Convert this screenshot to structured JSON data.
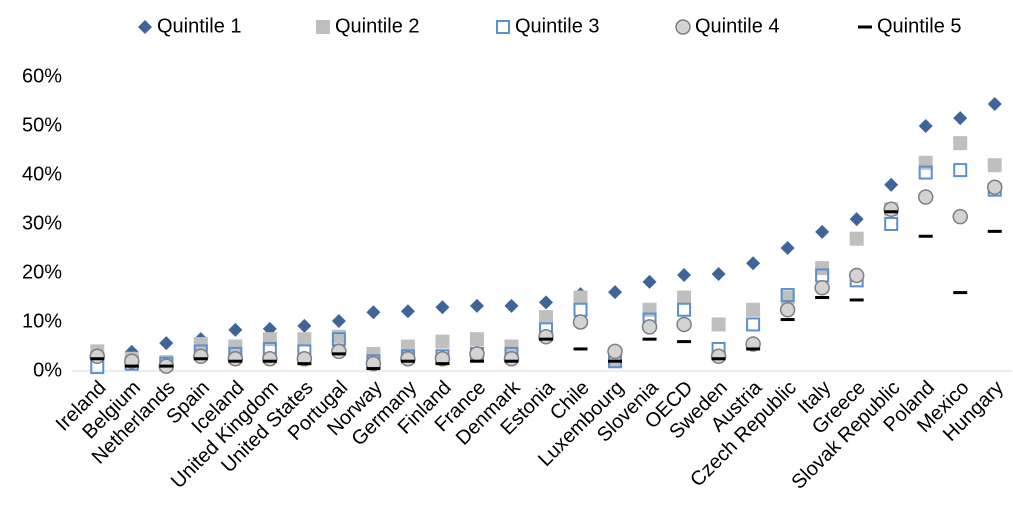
{
  "chart_data": {
    "type": "dot",
    "categories": [
      "Ireland",
      "Belgium",
      "Netherlands",
      "Spain",
      "Iceland",
      "United Kingdom",
      "United States",
      "Portugal",
      "Norway",
      "Germany",
      "Finland",
      "France",
      "Denmark",
      "Estonia",
      "Chile",
      "Luxembourg",
      "Slovenia",
      "OECD",
      "Sweden",
      "Austria",
      "Czech Republic",
      "Italy",
      "Greece",
      "Slovak Republic",
      "Poland",
      "Mexico",
      "Hungary"
    ],
    "series": [
      {
        "name": "Quintile 1",
        "color": "#3f6499",
        "marker": "diamond",
        "values": [
          3,
          3.9,
          5.7,
          6.5,
          8.4,
          8.6,
          9.2,
          10.2,
          12,
          12.2,
          13,
          13.3,
          13.3,
          14,
          15.7,
          16.1,
          18.2,
          19.6,
          19.8,
          22,
          25.1,
          28.4,
          31,
          38,
          50,
          51.6,
          54.5
        ]
      },
      {
        "name": "Quintile 2",
        "color": "#bfbfbf",
        "marker": "square",
        "values": [
          4,
          2.5,
          1.8,
          5.5,
          5,
          6.5,
          6.5,
          7,
          3.5,
          5,
          6,
          6.5,
          5,
          11,
          15,
          2,
          12.5,
          15,
          9.5,
          12.5,
          15,
          21,
          27,
          33,
          42.5,
          46.5,
          42
        ]
      },
      {
        "name": "Quintile 3",
        "color": "#5b8fd1",
        "marker": "hollow-square",
        "values": [
          0.8,
          1.5,
          1.5,
          4,
          3.5,
          4.5,
          4,
          6.5,
          2,
          3,
          3,
          3.5,
          3.5,
          8.5,
          12.5,
          2,
          10.5,
          12.5,
          4.5,
          9.5,
          15.5,
          19.5,
          18.5,
          30,
          40.5,
          41,
          37
        ]
      },
      {
        "name": "Quintile 4",
        "color": "#d3d3d3",
        "marker": "circle",
        "values": [
          3,
          2,
          1,
          3,
          2.5,
          2.5,
          2.5,
          4,
          1.5,
          2.5,
          2.5,
          3.5,
          2.5,
          7,
          10,
          4,
          9,
          9.5,
          3,
          5.5,
          12.5,
          17,
          19.5,
          33,
          35.5,
          31.5,
          37.5
        ]
      },
      {
        "name": "Quintile 5",
        "color": "#000000",
        "marker": "dash",
        "values": [
          2.5,
          1,
          1,
          2.5,
          2,
          2,
          1.5,
          3.5,
          0.5,
          2,
          1.5,
          2,
          2,
          6.5,
          4.5,
          2,
          6.5,
          6,
          2.5,
          4.5,
          10.5,
          15,
          14.5,
          32.5,
          27.5,
          16,
          28.5
        ]
      }
    ],
    "ylim": [
      0,
      60
    ],
    "yticks": [
      {
        "value": 0,
        "label": "0%"
      },
      {
        "value": 10,
        "label": "10%"
      },
      {
        "value": 20,
        "label": "20%"
      },
      {
        "value": 30,
        "label": "30%"
      },
      {
        "value": 40,
        "label": "40%"
      },
      {
        "value": 50,
        "label": "50%"
      },
      {
        "value": 60,
        "label": "60%"
      }
    ],
    "grid": false
  }
}
